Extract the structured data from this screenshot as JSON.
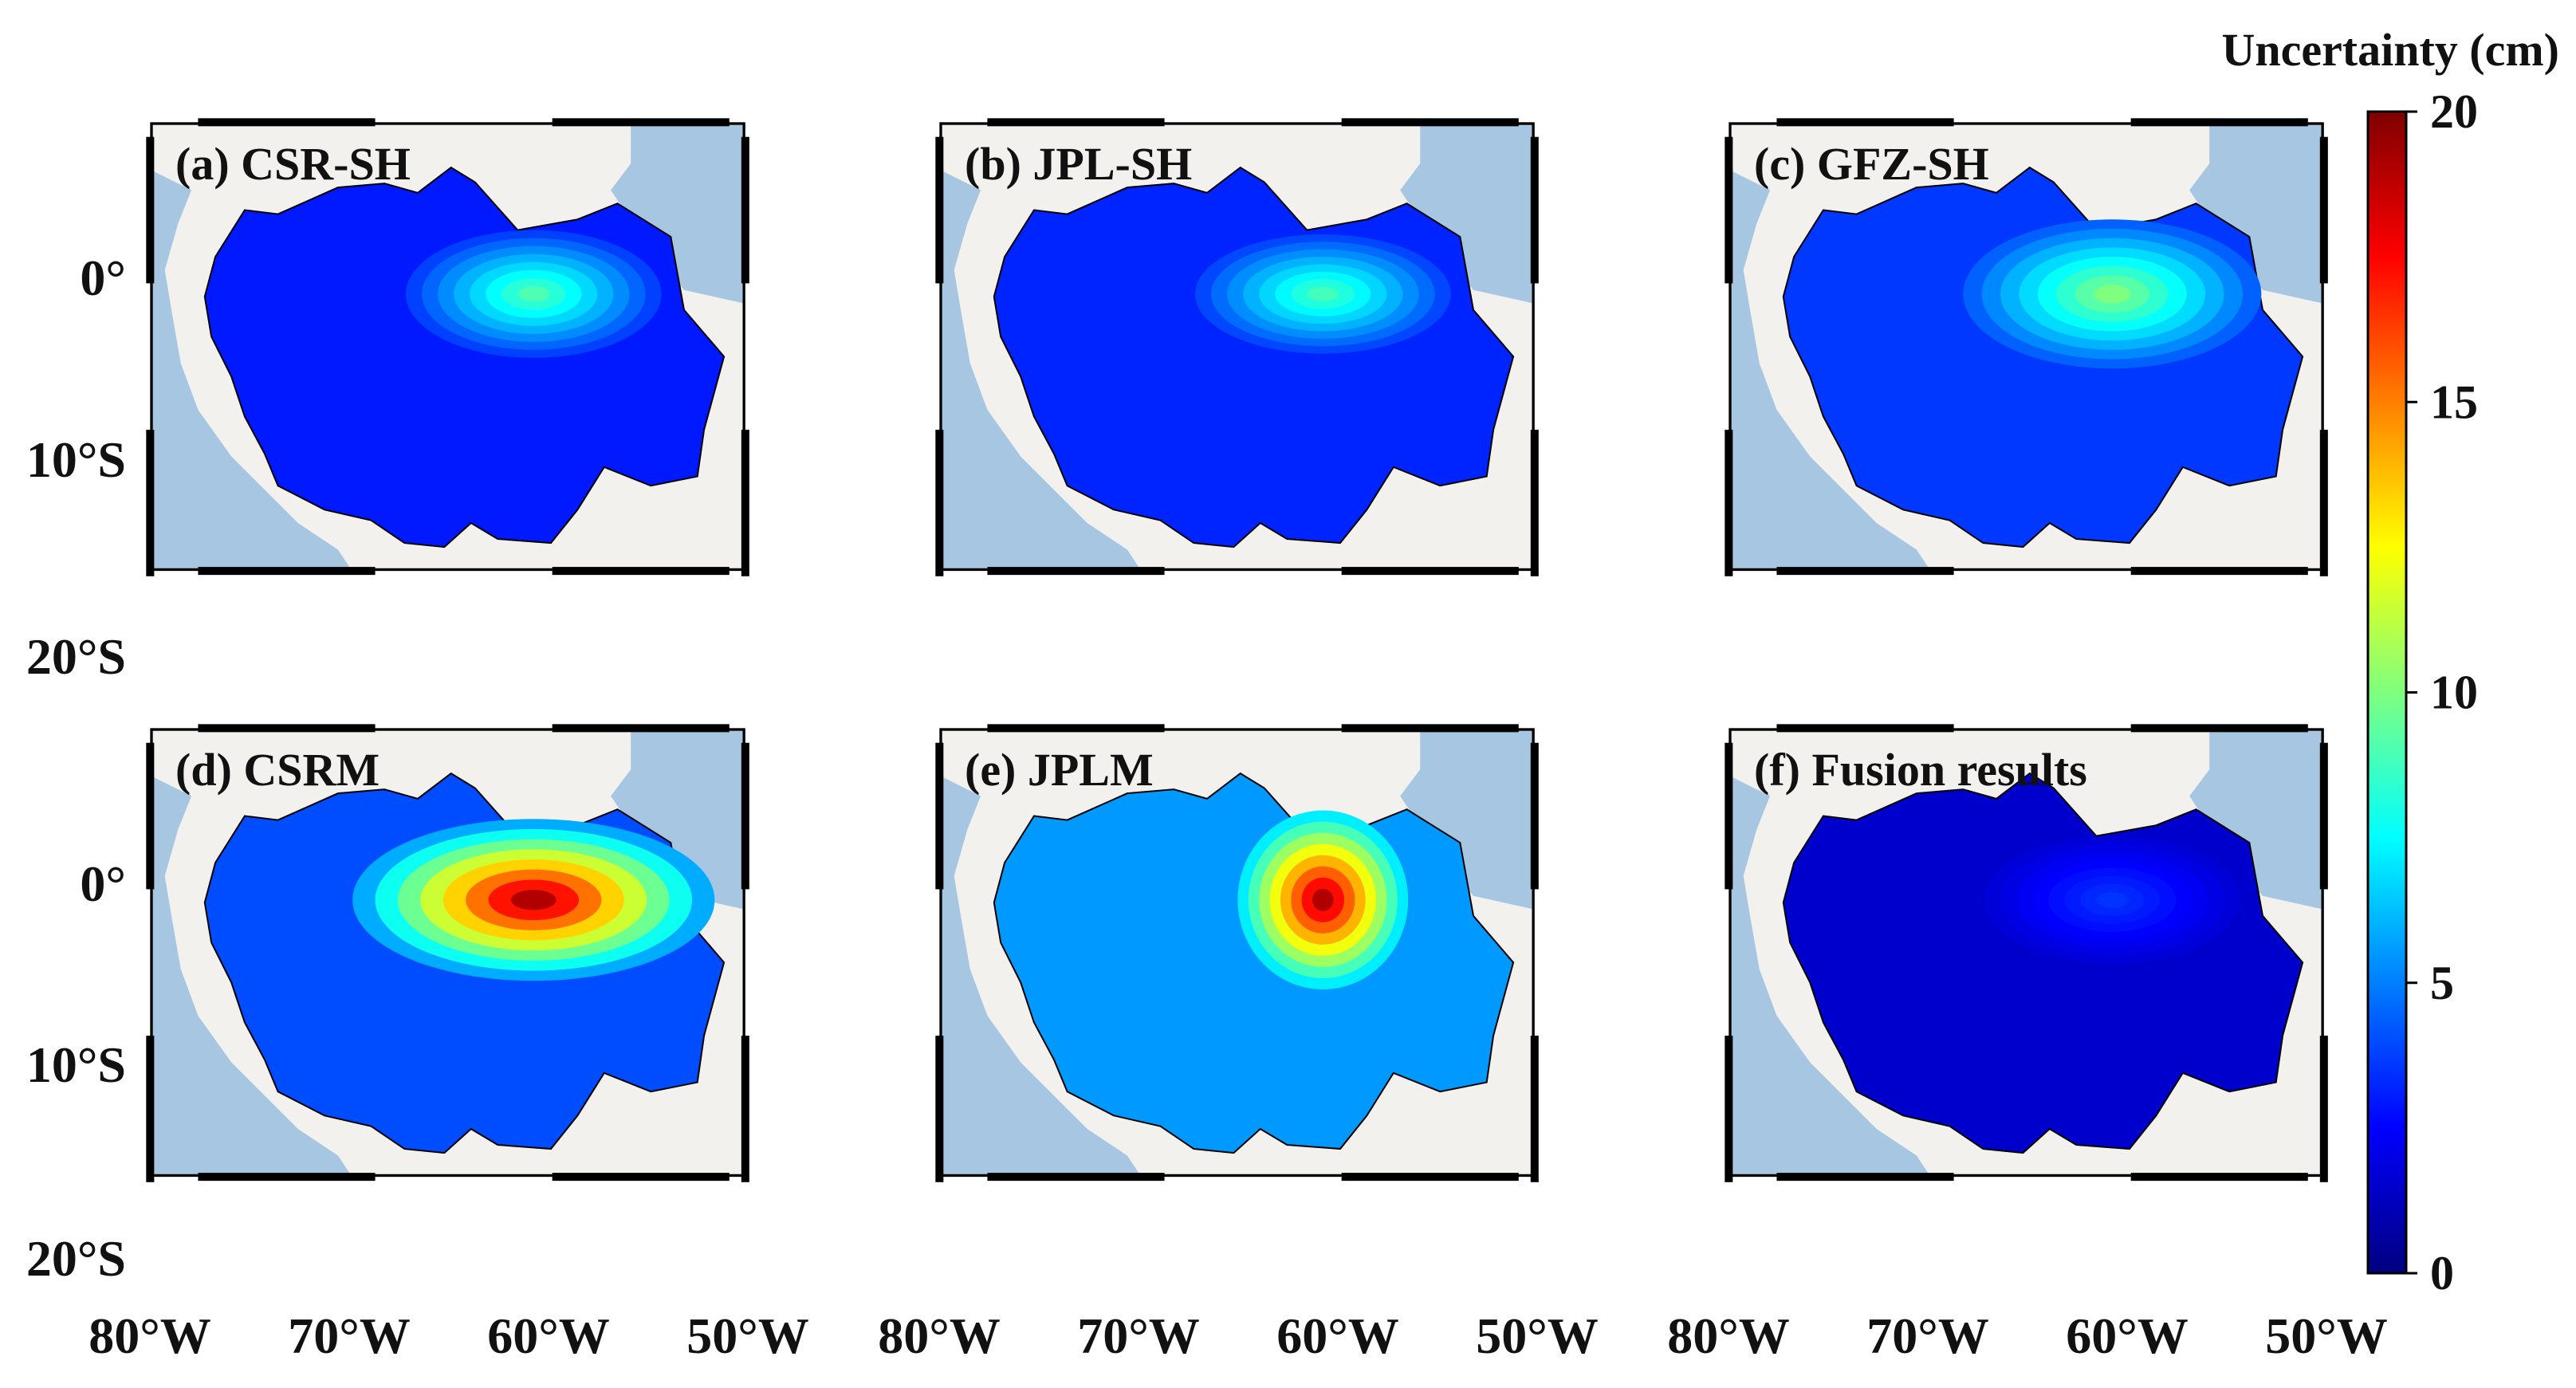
{
  "colorbar": {
    "title": "Uncertainty (cm)",
    "min": 0,
    "max": 20,
    "tick_labels": [
      "20",
      "15",
      "10",
      "5",
      "0"
    ],
    "tick_values": [
      20,
      15,
      10,
      5,
      0
    ],
    "colors": [
      "#00007f",
      "#0000ff",
      "#007fff",
      "#00ffff",
      "#7fff7f",
      "#ffff00",
      "#ff7f00",
      "#ff0000",
      "#7f0000"
    ]
  },
  "axes": {
    "lat_labels": [
      "0°",
      "10°S",
      "20°S"
    ],
    "lon_labels": [
      "80°W",
      "70°W",
      "60°W",
      "50°W"
    ]
  },
  "map_colors": {
    "ocean": "#a6c6e2",
    "land": "#f3f1ee",
    "frame": "#000000"
  },
  "panels": [
    {
      "label": "(a) CSR-SH",
      "base_uncertainty_cm": 3.0,
      "peak_uncertainty_cm": 9.0
    },
    {
      "label": "(b) JPL-SH",
      "base_uncertainty_cm": 3.2,
      "peak_uncertainty_cm": 8.8
    },
    {
      "label": "(c) GFZ-SH",
      "base_uncertainty_cm": 3.6,
      "peak_uncertainty_cm": 10.0
    },
    {
      "label": "(d) CSRM",
      "base_uncertainty_cm": 4.0,
      "peak_uncertainty_cm": 19.0
    },
    {
      "label": "(e) JPLM",
      "base_uncertainty_cm": 5.5,
      "peak_uncertainty_cm": 19.0
    },
    {
      "label": "(f) Fusion results",
      "base_uncertainty_cm": 1.5,
      "peak_uncertainty_cm": 3.5
    }
  ]
}
